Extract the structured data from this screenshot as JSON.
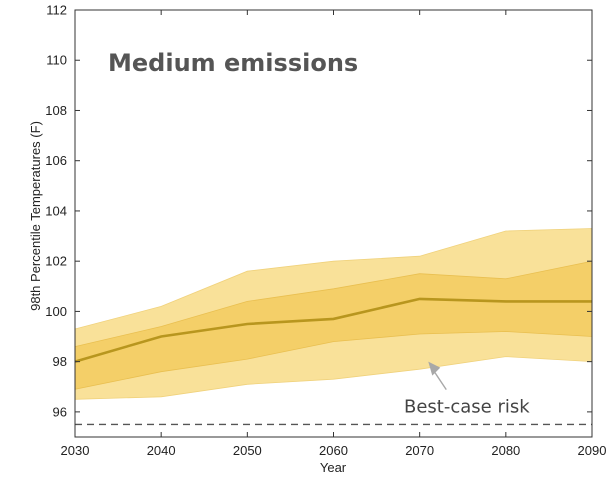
{
  "chart_data": {
    "type": "area",
    "title": "Medium emissions",
    "xlabel": "Year",
    "ylabel": "98th Percentile Temperatures (F)",
    "xlim": [
      2030,
      2090
    ],
    "ylim": [
      95,
      112
    ],
    "xticks": [
      2030,
      2040,
      2050,
      2060,
      2070,
      2080,
      2090
    ],
    "yticks": [
      96,
      98,
      100,
      102,
      104,
      106,
      108,
      110,
      112
    ],
    "grid": false,
    "x": [
      2030,
      2040,
      2050,
      2060,
      2070,
      2080,
      2090
    ],
    "median": [
      98.0,
      99.0,
      99.5,
      99.7,
      100.5,
      100.4,
      100.4
    ],
    "inner_band": {
      "lower": [
        96.9,
        97.6,
        98.1,
        98.8,
        99.1,
        99.2,
        99.0
      ],
      "upper": [
        98.6,
        99.4,
        100.4,
        100.9,
        101.5,
        101.3,
        102.0
      ]
    },
    "outer_band": {
      "lower": [
        96.5,
        96.6,
        97.1,
        97.3,
        97.7,
        98.2,
        98.0
      ],
      "upper": [
        99.3,
        100.2,
        101.6,
        102.0,
        102.2,
        103.2,
        103.3
      ]
    },
    "best_case_risk": 95.5,
    "annotations": [
      {
        "text": "Best-case risk",
        "points_to": {
          "x": 2071,
          "y": 98.0
        }
      }
    ],
    "colors": {
      "outer_band": "#f9e199",
      "inner_band": "#f4cf68",
      "median_line": "#b8961e",
      "reference_line": "#555555",
      "arrow": "#a8a8a8"
    }
  }
}
